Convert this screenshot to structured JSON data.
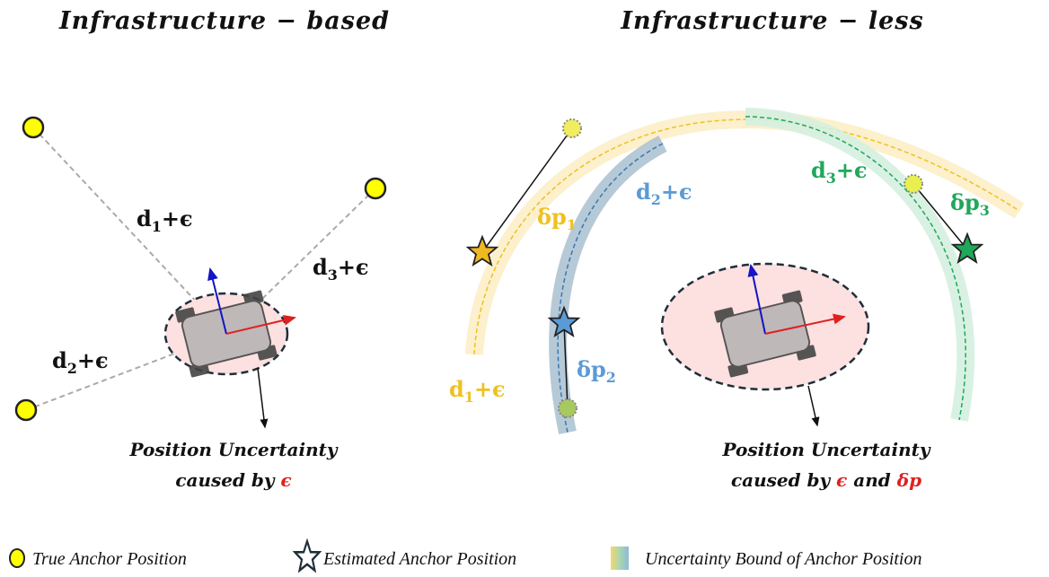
{
  "titles": {
    "left": "Infrastructure − based",
    "right": "Infrastructure − less"
  },
  "colors": {
    "anchor": "#ffff00",
    "yellow": "#f0c020",
    "blue": "#5b9bd5",
    "green": "#1fa85a",
    "red": "#e02020",
    "ellipse_fill": "#fde0e0"
  },
  "left": {
    "d1": {
      "base": "d",
      "sub": "1",
      "rest": "+ϵ"
    },
    "d2": {
      "base": "d",
      "sub": "2",
      "rest": "+ϵ"
    },
    "d3": {
      "base": "d",
      "sub": "3",
      "rest": "+ϵ"
    },
    "caption_line1": "Position Uncertainty",
    "caption_line2_prefix": "caused by ",
    "caption_line2_eps": "ϵ"
  },
  "right": {
    "d1": {
      "base": "d",
      "sub": "1",
      "rest": "+ϵ"
    },
    "d2": {
      "base": "d",
      "sub": "2",
      "rest": "+ϵ"
    },
    "d3": {
      "base": "d",
      "sub": "3",
      "rest": "+ϵ"
    },
    "dp1": {
      "base": "δp",
      "sub": "1"
    },
    "dp2": {
      "base": "δp",
      "sub": "2"
    },
    "dp3": {
      "base": "δp",
      "sub": "3"
    },
    "caption_line1": "Position Uncertainty",
    "caption_line2_prefix": "caused by ",
    "caption_line2_eps": "ϵ",
    "caption_line2_and": " and ",
    "caption_line2_dp": "δp"
  },
  "legend": {
    "true_anchor": "True Anchor Position",
    "estimated_anchor": "Estimated Anchor Position",
    "uncertainty_bound": "Uncertainty Bound of Anchor Position"
  }
}
